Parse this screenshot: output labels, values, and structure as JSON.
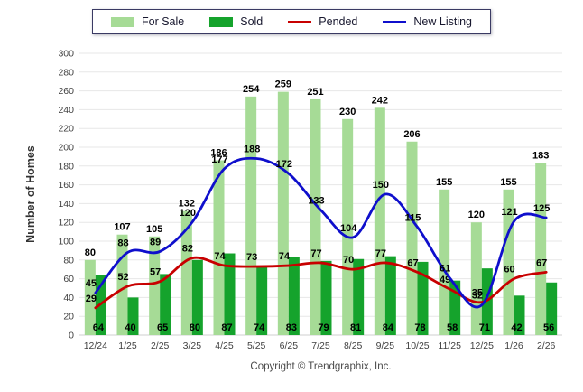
{
  "footer": {
    "copyright": "Copyright © Trendgraphix, Inc."
  },
  "chart_data": {
    "type": "bar",
    "title": "",
    "xlabel": "",
    "ylabel": "Number of Homes",
    "ylim": [
      0,
      300
    ],
    "ytick_step": 20,
    "grid": true,
    "legend_position": "top-center",
    "categories": [
      "12/24",
      "1/25",
      "2/25",
      "3/25",
      "4/25",
      "5/25",
      "6/25",
      "7/25",
      "8/25",
      "9/25",
      "10/25",
      "11/25",
      "12/25",
      "1/26",
      "2/26"
    ],
    "series": [
      {
        "name": "For Sale",
        "kind": "bar",
        "color": "#a6db96",
        "values": [
          80,
          107,
          105,
          132,
          186,
          254,
          259,
          251,
          230,
          242,
          206,
          155,
          120,
          155,
          183
        ]
      },
      {
        "name": "Sold",
        "kind": "bar",
        "color": "#15a32c",
        "values": [
          64,
          40,
          65,
          80,
          87,
          74,
          83,
          79,
          81,
          84,
          78,
          58,
          71,
          42,
          56
        ]
      },
      {
        "name": "Pended",
        "kind": "line",
        "color": "#c80000",
        "values": [
          29,
          52,
          57,
          82,
          74,
          73,
          74,
          77,
          70,
          77,
          67,
          49,
          35,
          60,
          67
        ]
      },
      {
        "name": "New Listing",
        "kind": "line",
        "color": "#0f0fcc",
        "values": [
          45,
          88,
          89,
          120,
          177,
          188,
          172,
          133,
          104,
          150,
          115,
          61,
          32,
          121,
          125
        ]
      }
    ],
    "colors": {
      "grid": "#e7e7e7",
      "baseline": "#cfcfcf",
      "axis_text": "#404040",
      "value_label": "#000000",
      "ylabel_text": "#333333"
    }
  }
}
